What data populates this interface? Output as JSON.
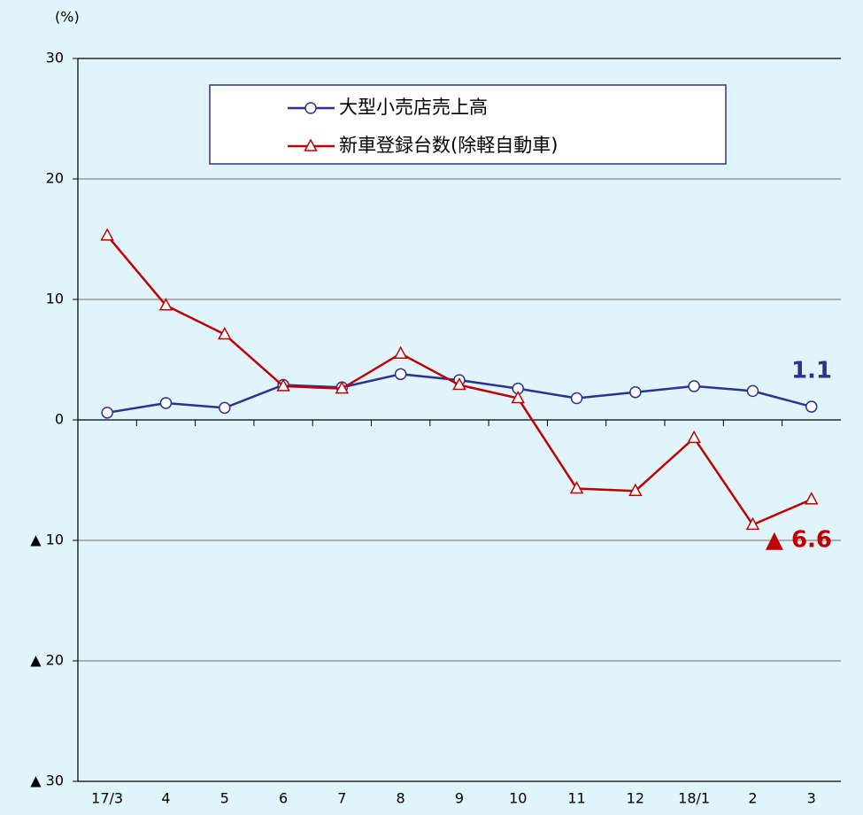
{
  "chart_data": {
    "type": "line",
    "y_label": "(%)",
    "categories": [
      "17/3",
      "4",
      "5",
      "6",
      "7",
      "8",
      "9",
      "10",
      "11",
      "12",
      "18/1",
      "2",
      "3"
    ],
    "series": [
      {
        "name": "大型小売店売上高",
        "color": "#2e3192",
        "marker": "circle",
        "values": [
          0.6,
          1.4,
          1.0,
          2.9,
          2.7,
          3.8,
          3.3,
          2.6,
          1.8,
          2.3,
          2.8,
          2.4,
          1.1
        ],
        "value_labels": [
          null,
          null,
          null,
          null,
          null,
          null,
          null,
          null,
          null,
          null,
          null,
          null,
          "1.1"
        ]
      },
      {
        "name": "新車登録台数(除軽自動車)",
        "color": "#c00000",
        "marker": "triangle",
        "values": [
          15.3,
          9.5,
          7.1,
          2.8,
          2.6,
          5.5,
          2.9,
          1.8,
          -5.7,
          -5.9,
          -1.5,
          -8.7,
          -6.6
        ],
        "value_labels": [
          null,
          null,
          null,
          null,
          null,
          null,
          null,
          null,
          null,
          null,
          null,
          null,
          "▲ 6.6"
        ]
      }
    ],
    "ylim": [
      -30,
      30
    ],
    "yticks": [
      {
        "value": -30,
        "label": "▲ 30"
      },
      {
        "value": -20,
        "label": "▲ 20"
      },
      {
        "value": -10,
        "label": "▲ 10"
      },
      0,
      10,
      20,
      30
    ],
    "grid": true,
    "legend": "top"
  }
}
